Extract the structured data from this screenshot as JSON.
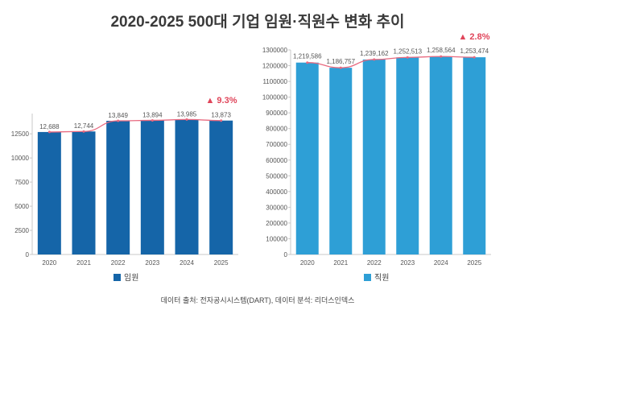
{
  "title": "2020-2025  500대 기업 임원·직원수 변화  추이",
  "source": "데이터 출처: 전자공시시스템(DART), 데이터 분석: 리더스인덱스",
  "colors": {
    "executives": "#1565a8",
    "employees": "#2e9fd6",
    "trend": "#e86a80",
    "growth": "#e0455a",
    "axis": "#c8c8c8"
  },
  "chart_data": [
    {
      "type": "bar",
      "name": "executives",
      "categories": [
        "2020",
        "2021",
        "2022",
        "2023",
        "2024",
        "2025"
      ],
      "series": [
        {
          "name": "임원",
          "values": [
            12688,
            12744,
            13849,
            13894,
            13985,
            13873
          ]
        }
      ],
      "data_labels": [
        "12,688",
        "12,744",
        "13,849",
        "13,894",
        "13,985",
        "13,873"
      ],
      "ylim": [
        0,
        14600
      ],
      "yticks": [
        0,
        2500,
        5000,
        7500,
        10000,
        12500
      ],
      "trend_line": true,
      "growth_annotation": "▲ 9.3%",
      "legend": "임원",
      "legend_position": "bottom"
    },
    {
      "type": "bar",
      "name": "employees",
      "categories": [
        "2020",
        "2021",
        "2022",
        "2023",
        "2024",
        "2025"
      ],
      "series": [
        {
          "name": "직원",
          "values": [
            1219586,
            1186757,
            1239162,
            1252513,
            1258564,
            1253474
          ]
        }
      ],
      "data_labels": [
        "1,219,586",
        "1,186,757",
        "1,239,162",
        "1,252,513",
        "1,258,564",
        "1,253,474"
      ],
      "ylim": [
        0,
        1300000
      ],
      "yticks": [
        0,
        100000,
        200000,
        300000,
        400000,
        500000,
        600000,
        700000,
        800000,
        900000,
        1000000,
        1100000,
        1200000,
        1300000
      ],
      "trend_line": true,
      "growth_annotation": "▲ 2.8%",
      "legend": "직원",
      "legend_position": "bottom"
    }
  ]
}
